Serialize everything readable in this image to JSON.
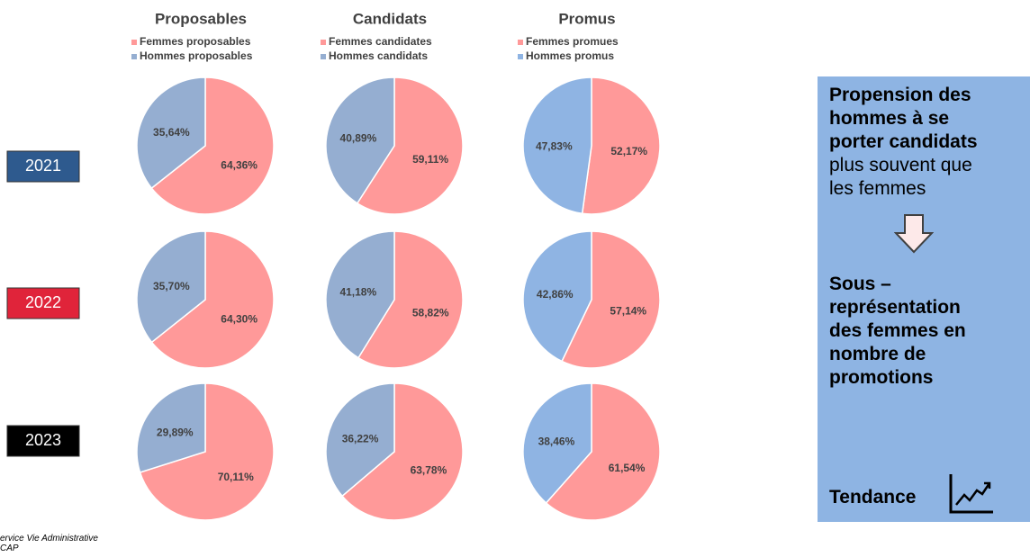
{
  "chart_data": [
    {
      "type": "pie",
      "title": "Proposables",
      "categories": [
        "Femmes proposables",
        "Hommes proposables"
      ],
      "colors": [
        "#ff9999",
        "#95aed1"
      ],
      "series": [
        {
          "values": [
            64.36,
            35.64
          ],
          "value_labels": [
            "64,36%",
            "35,64%"
          ]
        },
        {
          "values": [
            64.3,
            35.7
          ],
          "value_labels": [
            "64,30%",
            "35,70%"
          ]
        },
        {
          "values": [
            70.11,
            29.89
          ],
          "value_labels": [
            "70,11%",
            "29,89%"
          ]
        }
      ]
    },
    {
      "type": "pie",
      "title": "Candidats",
      "categories": [
        "Femmes candidates",
        "Hommes candidats"
      ],
      "colors": [
        "#ff9999",
        "#95aed1"
      ],
      "series": [
        {
          "values": [
            59.11,
            40.89
          ],
          "value_labels": [
            "59,11%",
            "40,89%"
          ]
        },
        {
          "values": [
            58.82,
            41.18
          ],
          "value_labels": [
            "58,82%",
            "41,18%"
          ]
        },
        {
          "values": [
            63.78,
            36.22
          ],
          "value_labels": [
            "63,78%",
            "36,22%"
          ]
        }
      ]
    },
    {
      "type": "pie",
      "title": "Promus",
      "categories": [
        "Femmes promues",
        "Hommes promus"
      ],
      "colors": [
        "#ff9999",
        "#8fb4e3"
      ],
      "series": [
        {
          "values": [
            52.17,
            47.83
          ],
          "value_labels": [
            "52,17%",
            "47,83%"
          ]
        },
        {
          "values": [
            57.14,
            42.86
          ],
          "value_labels": [
            "57,14%",
            "42,86%"
          ]
        },
        {
          "values": [
            61.54,
            38.46
          ],
          "value_labels": [
            "61,54%",
            "38,46%"
          ]
        }
      ]
    }
  ],
  "years": [
    {
      "label": "2021",
      "color": "#2e5a8e"
    },
    {
      "label": "2022",
      "color": "#e0243a"
    },
    {
      "label": "2023",
      "color": "#000000"
    }
  ],
  "sidebar": {
    "bold_lines": [
      "Propension des",
      "hommes à se",
      "porter candidats"
    ],
    "lines": [
      "plus souvent que",
      "les femmes"
    ],
    "conclusion": [
      "Sous –",
      "représentation",
      "des femmes en",
      "nombre de",
      "promotions"
    ],
    "trend": "Tendance"
  },
  "footer": [
    "ervice Vie Administrative",
    "CAP"
  ]
}
